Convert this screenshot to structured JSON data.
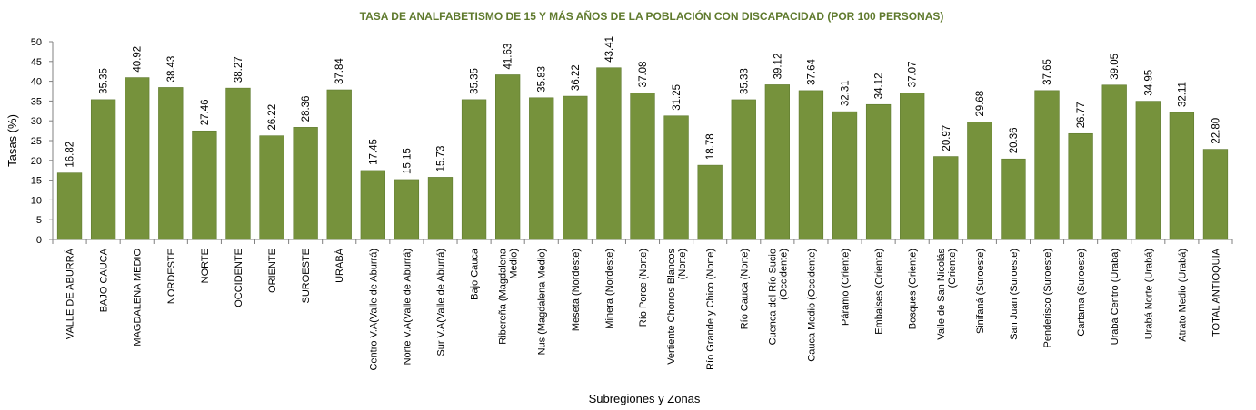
{
  "chart_data": {
    "type": "bar",
    "title": "TASA DE ANALFABETISMO DE 15 Y MÁS AÑOS DE LA POBLACIÓN CON DISCAPACIDAD (POR 100 PERSONAS)",
    "xlabel": "Subregiones y Zonas",
    "ylabel": "Tasas (%)",
    "ylim": [
      0,
      50
    ],
    "yticks": [
      0,
      5,
      10,
      15,
      20,
      25,
      30,
      35,
      40,
      45,
      50
    ],
    "grid": false,
    "bar_color": "#76923c",
    "categories": [
      [
        "VALLE DE ABURRÁ"
      ],
      [
        "BAJO CAUCA"
      ],
      [
        "MAGDALENA MEDIO"
      ],
      [
        "NORDESTE"
      ],
      [
        "NORTE"
      ],
      [
        "OCCIDENTE"
      ],
      [
        "ORIENTE"
      ],
      [
        "SUROESTE"
      ],
      [
        "URABÁ"
      ],
      [
        "Centro V.A(Valle de Aburrá)"
      ],
      [
        "Norte V.A(Valle de Aburrá)"
      ],
      [
        "Sur V.A(Valle de Aburrá)"
      ],
      [
        "Bajo Cauca"
      ],
      [
        "Ribereña  (Magdalena",
        "Medio)"
      ],
      [
        "Nus  (Magdalena Medio)"
      ],
      [
        "Meseta  (Nordeste)"
      ],
      [
        "Minera  (Nordeste)"
      ],
      [
        "Río Porce   (Norte)"
      ],
      [
        "Vertiente Chorros Blancos",
        "(Norte)"
      ],
      [
        "Río Grande y Chico  (Norte)"
      ],
      [
        "Río Cauca  (Norte)"
      ],
      [
        "Cuenca del Río Sucio",
        "(Occidente)"
      ],
      [
        "Cauca Medio  (Occidente)"
      ],
      [
        "Páramo  (Oriente)"
      ],
      [
        "Embalses  (Oriente)"
      ],
      [
        "Bosques  (Oriente)"
      ],
      [
        "Valle de San Nicolás",
        "(Oriente)"
      ],
      [
        "Sinifaná  (Suroeste)"
      ],
      [
        "San Juan  (Suroeste)"
      ],
      [
        "Penderisco  (Suroeste)"
      ],
      [
        "Cartama  (Suroeste)"
      ],
      [
        "Urabá Centro  (Urabá)"
      ],
      [
        "Urabá Norte  (Urabá)"
      ],
      [
        "Atrato Medio  (Urabá)"
      ],
      [
        "TOTAL ANTIOQUIA"
      ]
    ],
    "values": [
      16.82,
      35.35,
      40.92,
      38.43,
      27.46,
      38.27,
      26.22,
      28.36,
      37.84,
      17.45,
      15.15,
      15.73,
      35.35,
      41.63,
      35.83,
      36.22,
      43.41,
      37.08,
      31.25,
      18.78,
      35.33,
      39.12,
      37.64,
      32.31,
      34.12,
      37.07,
      20.97,
      29.68,
      20.36,
      37.65,
      26.77,
      39.05,
      34.95,
      32.11,
      22.8
    ],
    "data_labels": [
      "16.82",
      "35.35",
      "40.92",
      "38.43",
      "27.46",
      "38.27",
      "26.22",
      "28.36",
      "37.84",
      "17.45",
      "15.15",
      "15.73",
      "35.35",
      "41.63",
      "35.83",
      "36.22",
      "43.41",
      "37.08",
      "31.25",
      "18.78",
      "35.33",
      "39.12",
      "37.64",
      "32.31",
      "34.12",
      "37.07",
      "20.97",
      "29.68",
      "20.36",
      "37.65",
      "26.77",
      "39.05",
      "34.95",
      "32.11",
      "22.80"
    ]
  }
}
